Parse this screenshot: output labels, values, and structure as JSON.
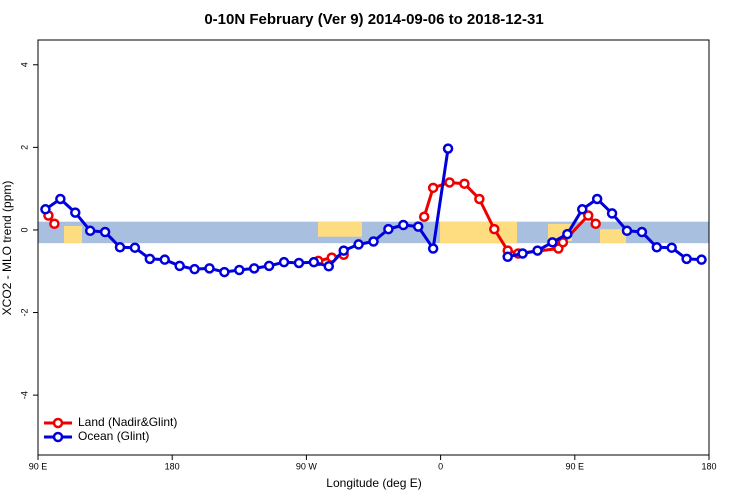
{
  "chart_data": {
    "type": "line",
    "title": "0-10N February (Ver 9)   2014-09-06 to 2018-12-31",
    "x_label": "Longitude (deg E)",
    "y_label": "XCO2 - MLO trend (ppm)",
    "xlim": [
      90,
      540
    ],
    "xticks": [
      {
        "value": 90,
        "label": "90 E"
      },
      180,
      {
        "value": 270,
        "label": "90 W"
      },
      {
        "value": 360,
        "label": "0"
      },
      {
        "value": 450,
        "label": "90 E"
      },
      {
        "value": 540,
        "label": "180"
      }
    ],
    "ylim": [
      -5.45,
      4.6
    ],
    "yticks": [
      -4,
      -2,
      0,
      2,
      4
    ],
    "map_band": [
      -0.32,
      0.2
    ],
    "legend": "bottom-left",
    "series": [
      {
        "name": "Land (Nadir&Glint)",
        "color": "#ee0000",
        "x": [
          97,
          101,
          null,
          278,
          287,
          295,
          null,
          349,
          355,
          366,
          376,
          386,
          396,
          405,
          412,
          439,
          442,
          459,
          464
        ],
        "values": [
          0.35,
          0.15,
          null,
          -0.75,
          -0.67,
          -0.6,
          null,
          0.32,
          1.02,
          1.15,
          1.12,
          0.75,
          0.02,
          -0.5,
          -0.57,
          -0.45,
          -0.3,
          0.35,
          0.15
        ]
      },
      {
        "name": "Ocean (Glint)",
        "color": "#0000dd",
        "x": [
          95,
          105,
          115,
          125,
          135,
          145,
          155,
          165,
          175,
          185,
          195,
          205,
          215,
          225,
          235,
          245,
          255,
          265,
          275,
          285,
          295,
          305,
          315,
          325,
          335,
          345,
          355,
          365,
          null,
          405,
          415,
          425,
          435,
          445,
          455,
          465,
          475,
          485,
          495,
          505,
          515,
          525,
          535
        ],
        "values": [
          0.5,
          0.75,
          0.42,
          -0.02,
          -0.05,
          -0.42,
          -0.43,
          -0.7,
          -0.72,
          -0.87,
          -0.95,
          -0.93,
          -1.02,
          -0.97,
          -0.93,
          -0.87,
          -0.78,
          -0.8,
          -0.78,
          -0.88,
          -0.5,
          -0.35,
          -0.28,
          0.02,
          0.12,
          0.08,
          -0.45,
          1.97,
          null,
          -0.65,
          -0.57,
          -0.5,
          -0.3,
          -0.1,
          0.5,
          0.75,
          0.4,
          -0.02,
          -0.05,
          -0.42,
          -0.43,
          -0.7,
          -0.72
        ]
      }
    ]
  }
}
